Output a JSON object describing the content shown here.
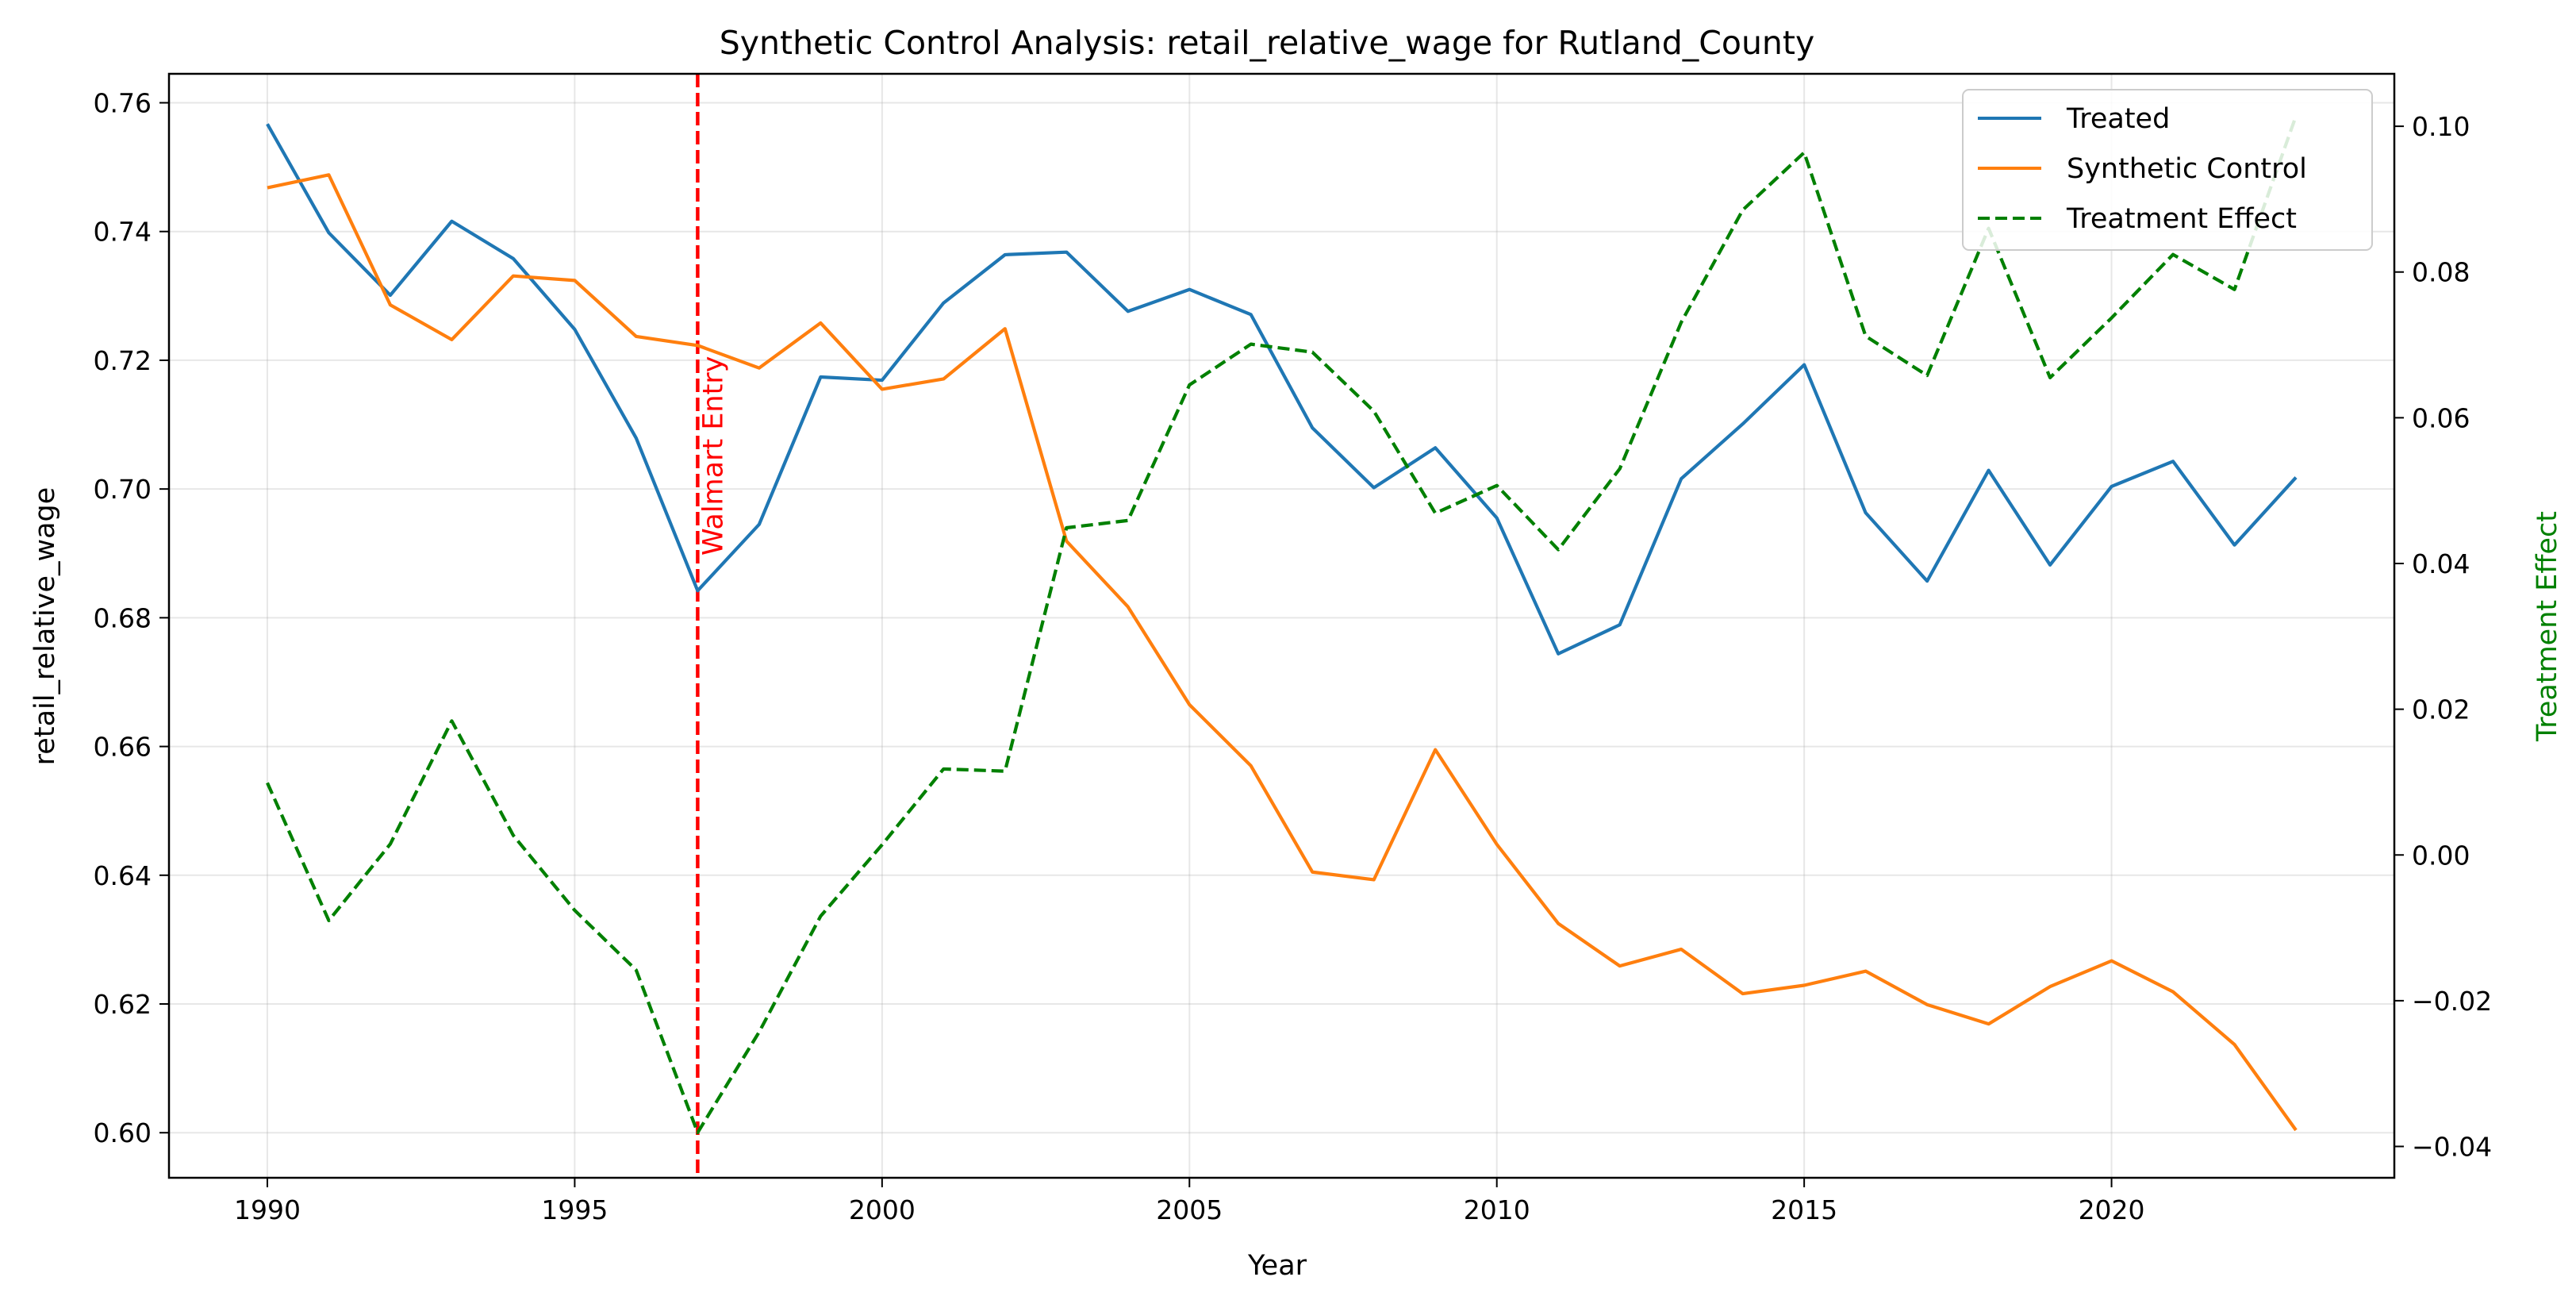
{
  "chart_data": {
    "type": "line",
    "title": "Synthetic Control Analysis: retail_relative_wage for Rutland_County",
    "xlabel": "Year",
    "ylabel": "retail_relative_wage",
    "y2label": "Treatment Effect",
    "xlim": [
      1988.4,
      2024.6
    ],
    "ylim": [
      0.593,
      0.7645
    ],
    "y2lim": [
      -0.0443,
      0.1072
    ],
    "xticks": [
      "1990",
      "1995",
      "2000",
      "2005",
      "2010",
      "2015",
      "2020"
    ],
    "yticks": [
      "0.60",
      "0.62",
      "0.64",
      "0.66",
      "0.68",
      "0.70",
      "0.72",
      "0.74",
      "0.76"
    ],
    "y2ticks": [
      "−0.04",
      "−0.02",
      "0.00",
      "0.02",
      "0.04",
      "0.06",
      "0.08",
      "0.10"
    ],
    "grid": true,
    "legend_position": "top-right",
    "x": [
      1990,
      1991,
      1992,
      1993,
      1994,
      1995,
      1996,
      1997,
      1998,
      1999,
      2000,
      2001,
      2002,
      2003,
      2004,
      2005,
      2006,
      2007,
      2008,
      2009,
      2010,
      2011,
      2012,
      2013,
      2014,
      2015,
      2016,
      2017,
      2018,
      2019,
      2020,
      2021,
      2022,
      2023
    ],
    "series": [
      {
        "name": "Treated",
        "axis": "left",
        "color": "#1f77b4",
        "style": "solid",
        "values": [
          0.7567,
          0.7398,
          0.7301,
          0.7416,
          0.7358,
          0.7248,
          0.7079,
          0.6842,
          0.6945,
          0.7174,
          0.7169,
          0.7289,
          0.7364,
          0.7368,
          0.7276,
          0.731,
          0.7271,
          0.7095,
          0.7002,
          0.7064,
          0.6955,
          0.6744,
          0.6789,
          0.7016,
          0.7101,
          0.7193,
          0.6963,
          0.6857,
          0.7029,
          0.6882,
          0.7004,
          0.7043,
          0.6913,
          0.7018
        ]
      },
      {
        "name": "Synthetic Control",
        "axis": "left",
        "color": "#ff7f0e",
        "style": "solid",
        "values": [
          0.7468,
          0.7488,
          0.7286,
          0.7232,
          0.7331,
          0.7324,
          0.7237,
          0.7223,
          0.7188,
          0.7258,
          0.7155,
          0.7171,
          0.7249,
          0.6919,
          0.6817,
          0.6665,
          0.657,
          0.6405,
          0.6393,
          0.6595,
          0.6448,
          0.6325,
          0.6259,
          0.6285,
          0.6216,
          0.6229,
          0.6251,
          0.6199,
          0.6169,
          0.6227,
          0.6267,
          0.6219,
          0.6137,
          0.6004
        ]
      },
      {
        "name": "Treatment Effect",
        "axis": "right",
        "color": "#008000",
        "style": "dashed",
        "values": [
          0.0099,
          -0.009,
          0.0015,
          0.0184,
          0.0027,
          -0.0076,
          -0.0158,
          -0.0381,
          -0.0243,
          -0.0084,
          0.0014,
          0.0118,
          0.0115,
          0.0449,
          0.0459,
          0.0645,
          0.0701,
          0.069,
          0.0609,
          0.0469,
          0.0507,
          0.0419,
          0.053,
          0.0731,
          0.0885,
          0.0964,
          0.0712,
          0.0658,
          0.086,
          0.0655,
          0.0737,
          0.0824,
          0.0776,
          0.1014
        ]
      }
    ],
    "annotations": [
      {
        "type": "vline",
        "x": 1997,
        "label": "Walmart Entry",
        "color": "#ff0000",
        "style": "dashed"
      }
    ]
  }
}
